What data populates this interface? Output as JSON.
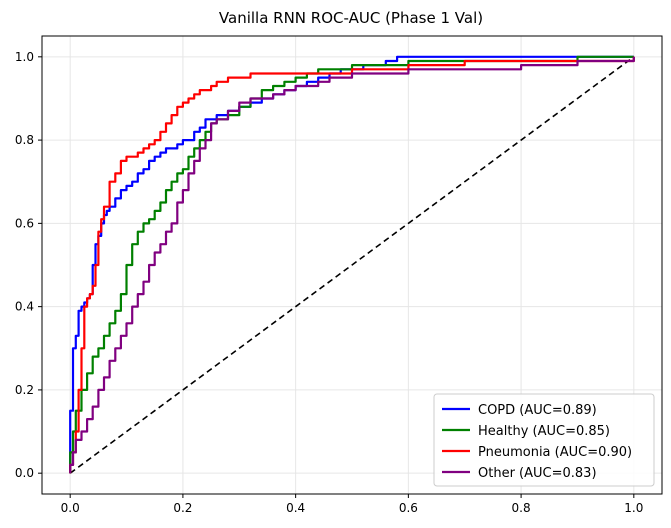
{
  "chart_data": {
    "type": "line",
    "title": "Vanilla RNN ROC-AUC (Phase 1 Val)",
    "xlabel": "",
    "ylabel": "",
    "xlim": [
      -0.05,
      1.05
    ],
    "ylim": [
      -0.05,
      1.05
    ],
    "xticks": [
      0.0,
      0.2,
      0.4,
      0.6,
      0.8,
      1.0
    ],
    "yticks": [
      0.0,
      0.2,
      0.4,
      0.6,
      0.8,
      1.0
    ],
    "tick_labels_x": [
      "0.0",
      "0.2",
      "0.4",
      "0.6",
      "0.8",
      "1.0"
    ],
    "tick_labels_y": [
      "0.0",
      "0.2",
      "0.4",
      "0.6",
      "0.8",
      "1.0"
    ],
    "grid": true,
    "legend_position": "lower-right",
    "series": [
      {
        "name": "COPD (AUC=0.89)",
        "color": "#0000ff",
        "x": [
          0,
          0,
          0.005,
          0.005,
          0.01,
          0.015,
          0.02,
          0.025,
          0.03,
          0.035,
          0.04,
          0.045,
          0.05,
          0.055,
          0.06,
          0.065,
          0.07,
          0.08,
          0.09,
          0.1,
          0.11,
          0.12,
          0.13,
          0.14,
          0.15,
          0.16,
          0.17,
          0.18,
          0.19,
          0.2,
          0.21,
          0.22,
          0.23,
          0.24,
          0.25,
          0.26,
          0.28,
          0.3,
          0.32,
          0.34,
          0.36,
          0.38,
          0.4,
          0.42,
          0.44,
          0.46,
          0.48,
          0.5,
          0.52,
          0.54,
          0.56,
          0.58,
          0.6,
          0.65,
          0.7,
          0.8,
          0.9,
          1.0
        ],
        "y": [
          0,
          0.15,
          0.28,
          0.3,
          0.33,
          0.39,
          0.4,
          0.41,
          0.42,
          0.43,
          0.5,
          0.55,
          0.57,
          0.6,
          0.62,
          0.63,
          0.64,
          0.66,
          0.68,
          0.69,
          0.7,
          0.72,
          0.73,
          0.75,
          0.76,
          0.77,
          0.78,
          0.78,
          0.79,
          0.8,
          0.8,
          0.82,
          0.83,
          0.85,
          0.85,
          0.86,
          0.87,
          0.88,
          0.89,
          0.9,
          0.91,
          0.92,
          0.93,
          0.94,
          0.95,
          0.96,
          0.97,
          0.97,
          0.98,
          0.98,
          0.99,
          1.0,
          1.0,
          1.0,
          1.0,
          1.0,
          1.0,
          1.0
        ]
      },
      {
        "name": "Healthy (AUC=0.85)",
        "color": "#008000",
        "x": [
          0,
          0,
          0.005,
          0.01,
          0.02,
          0.03,
          0.04,
          0.05,
          0.06,
          0.07,
          0.08,
          0.09,
          0.1,
          0.11,
          0.12,
          0.13,
          0.14,
          0.15,
          0.16,
          0.17,
          0.18,
          0.19,
          0.2,
          0.21,
          0.22,
          0.23,
          0.24,
          0.25,
          0.26,
          0.28,
          0.3,
          0.32,
          0.34,
          0.36,
          0.38,
          0.4,
          0.42,
          0.44,
          0.46,
          0.48,
          0.5,
          0.55,
          0.6,
          0.7,
          0.8,
          0.9,
          1.0
        ],
        "y": [
          0,
          0.05,
          0.1,
          0.15,
          0.2,
          0.24,
          0.28,
          0.3,
          0.33,
          0.36,
          0.39,
          0.43,
          0.5,
          0.55,
          0.58,
          0.6,
          0.61,
          0.63,
          0.65,
          0.68,
          0.7,
          0.72,
          0.73,
          0.76,
          0.78,
          0.8,
          0.82,
          0.84,
          0.85,
          0.86,
          0.88,
          0.9,
          0.92,
          0.93,
          0.94,
          0.95,
          0.96,
          0.97,
          0.97,
          0.97,
          0.98,
          0.98,
          0.99,
          0.99,
          0.99,
          1.0,
          1.0
        ]
      },
      {
        "name": "Pneumonia (AUC=0.90)",
        "color": "#ff0000",
        "x": [
          0,
          0,
          0.005,
          0.01,
          0.015,
          0.02,
          0.025,
          0.03,
          0.035,
          0.04,
          0.045,
          0.05,
          0.055,
          0.06,
          0.07,
          0.08,
          0.09,
          0.1,
          0.11,
          0.12,
          0.13,
          0.14,
          0.15,
          0.16,
          0.17,
          0.18,
          0.19,
          0.2,
          0.21,
          0.22,
          0.23,
          0.24,
          0.25,
          0.26,
          0.27,
          0.28,
          0.3,
          0.32,
          0.34,
          0.36,
          0.38,
          0.4,
          0.45,
          0.5,
          0.55,
          0.6,
          0.7,
          0.8,
          0.9,
          1.0
        ],
        "y": [
          0,
          0.02,
          0.05,
          0.1,
          0.2,
          0.3,
          0.4,
          0.42,
          0.43,
          0.45,
          0.5,
          0.58,
          0.61,
          0.64,
          0.7,
          0.72,
          0.75,
          0.76,
          0.76,
          0.77,
          0.78,
          0.79,
          0.8,
          0.82,
          0.84,
          0.86,
          0.88,
          0.89,
          0.9,
          0.91,
          0.92,
          0.92,
          0.93,
          0.94,
          0.94,
          0.95,
          0.95,
          0.96,
          0.96,
          0.96,
          0.96,
          0.96,
          0.96,
          0.97,
          0.97,
          0.98,
          0.99,
          0.99,
          0.99,
          1.0
        ]
      },
      {
        "name": "Other (AUC=0.83)",
        "color": "#800080",
        "x": [
          0,
          0,
          0.005,
          0.01,
          0.02,
          0.03,
          0.04,
          0.05,
          0.06,
          0.07,
          0.08,
          0.09,
          0.1,
          0.11,
          0.12,
          0.13,
          0.14,
          0.15,
          0.16,
          0.17,
          0.18,
          0.19,
          0.2,
          0.21,
          0.22,
          0.23,
          0.24,
          0.25,
          0.26,
          0.28,
          0.3,
          0.32,
          0.34,
          0.36,
          0.38,
          0.4,
          0.42,
          0.44,
          0.46,
          0.5,
          0.55,
          0.6,
          0.7,
          0.8,
          0.9,
          1.0
        ],
        "y": [
          0,
          0.02,
          0.05,
          0.08,
          0.1,
          0.13,
          0.16,
          0.2,
          0.23,
          0.27,
          0.3,
          0.33,
          0.36,
          0.4,
          0.43,
          0.46,
          0.5,
          0.53,
          0.55,
          0.58,
          0.6,
          0.65,
          0.68,
          0.72,
          0.75,
          0.78,
          0.8,
          0.84,
          0.85,
          0.87,
          0.89,
          0.9,
          0.9,
          0.91,
          0.92,
          0.93,
          0.93,
          0.94,
          0.95,
          0.96,
          0.96,
          0.97,
          0.97,
          0.98,
          0.99,
          1.0
        ]
      }
    ],
    "reference_line": {
      "name": "chance",
      "color": "#000000",
      "x": [
        0,
        1
      ],
      "y": [
        0,
        1
      ],
      "style": "dashed"
    }
  }
}
